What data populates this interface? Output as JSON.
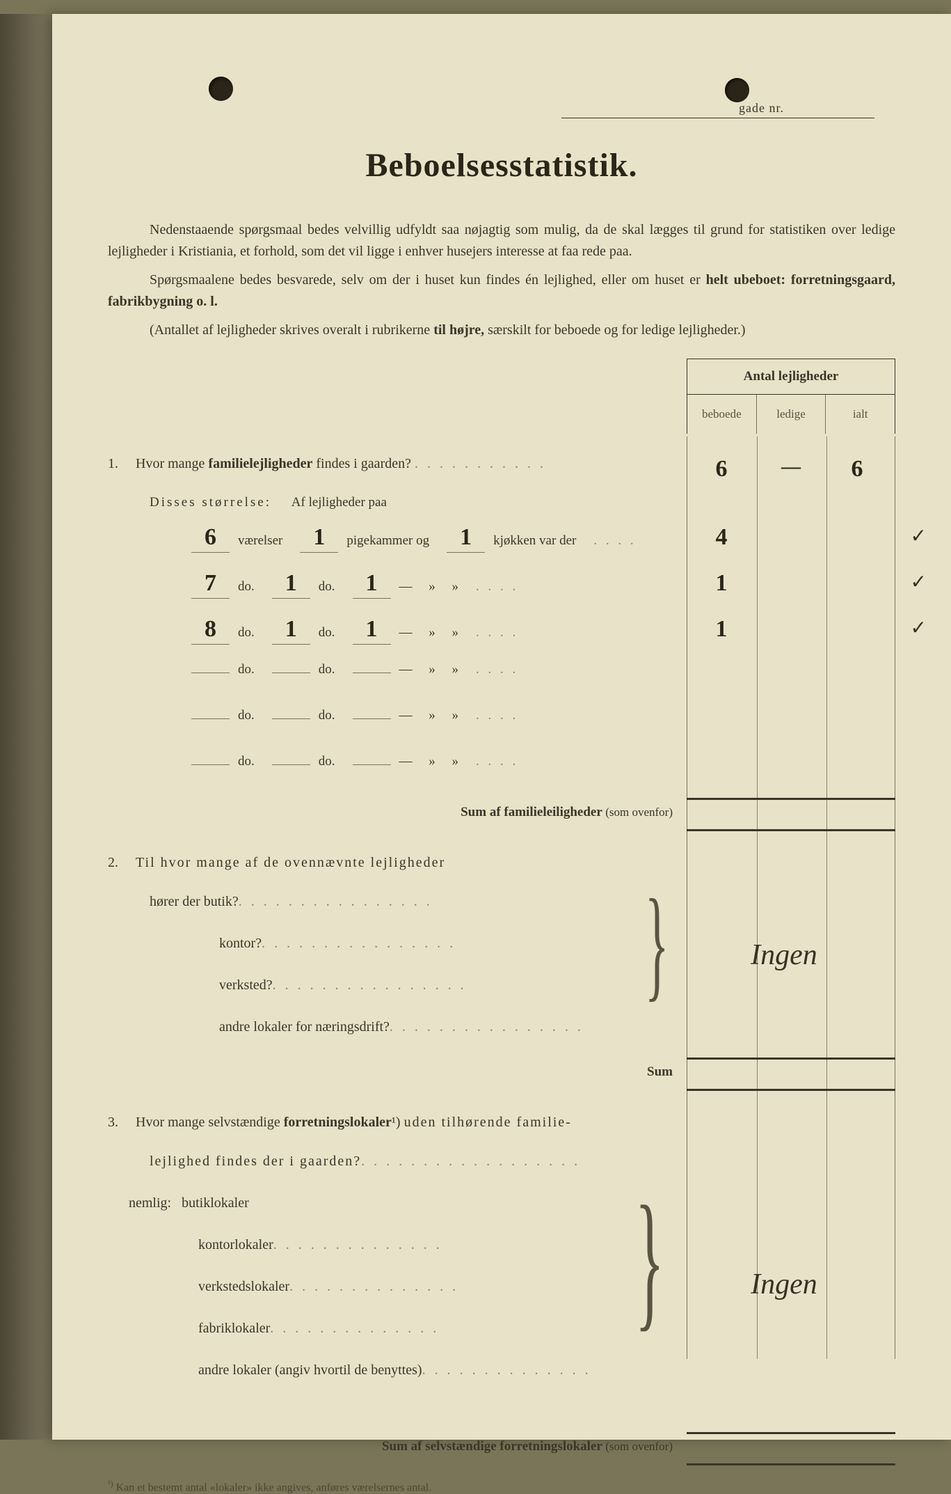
{
  "header": {
    "gade_label": "gade nr.",
    "title": "Beboelsesstatistik."
  },
  "intro": {
    "p1": "Nedenstaaende spørgsmaal bedes velvillig udfyldt saa nøjagtig som mulig, da de skal lægges til grund for statistiken over ledige lejligheder i Kristiania, et forhold, som det vil ligge i enhver husejers interesse at faa rede paa.",
    "p2_pre": "Spørgsmaalene bedes besvarede, selv om der i huset kun findes én lejlighed, eller om huset er ",
    "p2_bold": "helt ubeboet: forretningsgaard, fabrikbygning o. l.",
    "paren": "(Antallet af lejligheder skrives overalt i rubrikerne ",
    "paren_bold": "til højre,",
    "paren_end": " særskilt for beboede og for ledige lejligheder.)"
  },
  "table_header": {
    "main": "Antal lejligheder",
    "col1": "beboede",
    "col2": "ledige",
    "col3": "ialt"
  },
  "q1": {
    "num": "1.",
    "text_pre": "Hvor mange ",
    "text_bold": "familielejligheder",
    "text_post": " findes i gaarden?",
    "beboede": "6",
    "ledige": "—",
    "ialt": "6",
    "disses": "Disses størrelse:",
    "disses_post": "Af lejligheder paa",
    "rows": [
      {
        "vaer": "6",
        "vaer_label": "værelser",
        "pige": "1",
        "pige_label": "pigekammer og",
        "kjok": "1",
        "kjok_label": "kjøkken var der",
        "beboede": "4"
      },
      {
        "vaer": "7",
        "vaer_label": "do.",
        "pige": "1",
        "pige_label": "do.",
        "kjok": "1",
        "kjok_label": "—     »     »",
        "beboede": "1"
      },
      {
        "vaer": "8",
        "vaer_label": "do.",
        "pige": "1",
        "pige_label": "do.",
        "kjok": "1",
        "kjok_label": "—     »     »",
        "beboede": "1"
      },
      {
        "vaer": "",
        "vaer_label": "do.",
        "pige": "",
        "pige_label": "do.",
        "kjok": "",
        "kjok_label": "—     »     »",
        "beboede": ""
      },
      {
        "vaer": "",
        "vaer_label": "do.",
        "pige": "",
        "pige_label": "do.",
        "kjok": "",
        "kjok_label": "—     »     »",
        "beboede": ""
      },
      {
        "vaer": "",
        "vaer_label": "do.",
        "pige": "",
        "pige_label": "do.",
        "kjok": "",
        "kjok_label": "—     »     »",
        "beboede": ""
      }
    ],
    "sum": "Sum af familieleiligheder",
    "sum_paren": "(som ovenfor)"
  },
  "q2": {
    "num": "2.",
    "text": "Til hvor mange af de ovennævnte lejligheder",
    "lines": [
      "hører der butik?",
      "kontor?",
      "verksted?",
      "andre lokaler for næringsdrift?"
    ],
    "answer": "Ingen",
    "sum": "Sum"
  },
  "q3": {
    "num": "3.",
    "text_pre": "Hvor mange selvstændige ",
    "text_bold": "forretningslokaler",
    "text_sup": "¹)",
    "text_post": " uden tilhørende familie-",
    "text_line2": "lejlighed findes der i gaarden?",
    "nemlig": "nemlig:",
    "lines": [
      "butiklokaler",
      "kontorlokaler",
      "verkstedslokaler",
      "fabriklokaler",
      "andre lokaler (angiv hvortil de benyttes)"
    ],
    "answer": "Ingen",
    "sum": "Sum af selvstændige forretningslokaler",
    "sum_paren": "(som ovenfor)"
  },
  "footnote": {
    "sup": "¹)",
    "text": "Kan et bestemt antal «lokaler» ikke angives, anføres værelsernes antal."
  },
  "colors": {
    "page_bg": "#e8e2c8",
    "text": "#3a3628",
    "text_dark": "#2a2618",
    "line": "#7a7458",
    "ink": "#2a2618"
  }
}
